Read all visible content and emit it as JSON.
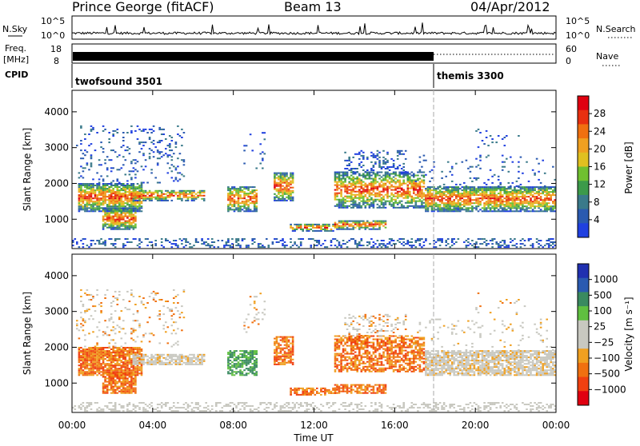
{
  "header": {
    "station": "Prince George (fitACF)",
    "beam": "Beam 13",
    "date": "04/Apr/2012"
  },
  "status_panel": {
    "nsky_label": "N.Sky",
    "nsky_ticks": [
      "10^5",
      "10^0"
    ],
    "nsearch_label": "N.Search",
    "nsearch_ticks": [
      "10^5",
      "10^0"
    ],
    "freq_label_1": "Freq.",
    "freq_label_2": "[MHz]",
    "freq_ticks": [
      "18",
      "8"
    ],
    "nave_label": "Nave",
    "nave_ticks": [
      "60",
      "0"
    ],
    "cpid_label": "CPID",
    "cpid_entries": [
      {
        "name": "twofsound 3501",
        "start_h": 0
      },
      {
        "name": "themis 3300",
        "start_h": 18
      }
    ]
  },
  "chart_data": [
    {
      "type": "heatmap",
      "panel": "power",
      "ylabel": "Slant Range [km]",
      "ylim": [
        180,
        4600
      ],
      "xlim_h": [
        0,
        24
      ],
      "yticks": [
        "1000",
        "2000",
        "3000",
        "4000"
      ],
      "colorbar_label": "Power [dB]",
      "colorbar_ticks": [
        "4",
        "8",
        "12",
        "16",
        "20",
        "24",
        "28"
      ],
      "colorscale": [
        "#2040e0",
        "#2a5ab0",
        "#3a7a8a",
        "#3c9a4a",
        "#70c030",
        "#e0c020",
        "#f0a020",
        "#f07010",
        "#e83010",
        "#e00010"
      ]
    },
    {
      "type": "heatmap",
      "panel": "velocity",
      "ylabel": "Slant Range [km]",
      "ylim": [
        180,
        4600
      ],
      "xlim_h": [
        0,
        24
      ],
      "yticks": [
        "1000",
        "2000",
        "3000",
        "4000"
      ],
      "colorbar_label": "Velocity [m s⁻¹]",
      "colorbar_ticks": [
        "1000",
        "500",
        "100",
        "25",
        "−25",
        "−100",
        "−500",
        "−1000"
      ],
      "colorscale": [
        "#2030b0",
        "#2a5ab0",
        "#3a8a60",
        "#60c040",
        "#c8c8c0",
        "#c8c8c0",
        "#f0a020",
        "#f07010",
        "#f04010",
        "#e00010"
      ]
    }
  ],
  "xaxis": {
    "label": "Time UT",
    "ticks": [
      "00:00",
      "04:00",
      "08:00",
      "12:00",
      "16:00",
      "20:00",
      "00:00"
    ]
  }
}
